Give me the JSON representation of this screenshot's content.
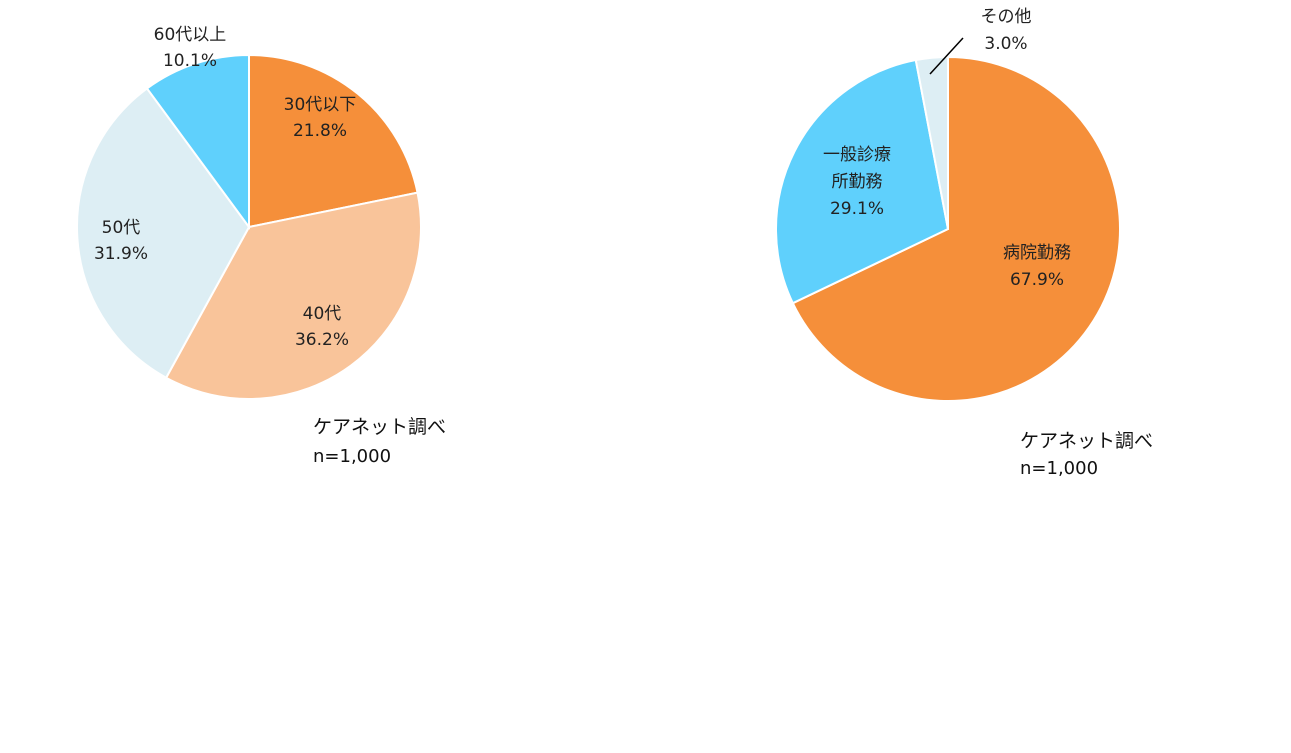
{
  "chart_data": [
    {
      "type": "pie",
      "title": "",
      "slices": [
        {
          "name": "30代以下",
          "value": 21.8,
          "label": "21.8%",
          "color": "#F58F3A"
        },
        {
          "name": "40代",
          "value": 36.2,
          "label": "36.2%",
          "color": "#F9C49A"
        },
        {
          "name": "50代",
          "value": 31.9,
          "label": "31.9%",
          "color": "#DDEEF4"
        },
        {
          "name": "60代以上",
          "value": 10.1,
          "label": "10.1%",
          "color": "#5FD0FC"
        }
      ],
      "source": "ケアネット調べ",
      "sample": "n=1,000"
    },
    {
      "type": "pie",
      "title": "",
      "slices": [
        {
          "name": "病院勤務",
          "value": 67.9,
          "label": "67.9%",
          "color": "#F58F3A"
        },
        {
          "name": "一般診療所勤務",
          "value": 29.1,
          "label": "29.1%",
          "color": "#5FD0FC"
        },
        {
          "name": "その他",
          "value": 3.0,
          "label": "3.0%",
          "color": "#DDEEF4"
        }
      ],
      "source": "ケアネット調べ",
      "sample": "n=1,000"
    }
  ]
}
